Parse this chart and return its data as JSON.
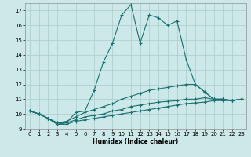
{
  "xlabel": "Humidex (Indice chaleur)",
  "bg_color": "#cce8e8",
  "grid_color": "#aacccc",
  "line_color": "#1a7070",
  "xlim": [
    -0.5,
    23.5
  ],
  "ylim": [
    9,
    17.5
  ],
  "xticks": [
    0,
    1,
    2,
    3,
    4,
    5,
    6,
    7,
    8,
    9,
    10,
    11,
    12,
    13,
    14,
    15,
    16,
    17,
    18,
    19,
    20,
    21,
    22,
    23
  ],
  "yticks": [
    9,
    10,
    11,
    12,
    13,
    14,
    15,
    16,
    17
  ],
  "line1_x": [
    0,
    1,
    2,
    3,
    4,
    5,
    6,
    7,
    8,
    9,
    10,
    11,
    12,
    13,
    14,
    15,
    16,
    17,
    18,
    19,
    20,
    21,
    22,
    23
  ],
  "line1_y": [
    10.2,
    10.0,
    9.7,
    9.3,
    9.4,
    10.1,
    10.2,
    11.6,
    13.5,
    14.8,
    16.7,
    17.4,
    14.8,
    16.7,
    16.5,
    16.0,
    16.3,
    13.7,
    12.0,
    11.5,
    11.0,
    11.0,
    10.9,
    11.0
  ],
  "line2_x": [
    0,
    1,
    2,
    3,
    4,
    5,
    6,
    7,
    8,
    9,
    10,
    11,
    12,
    13,
    14,
    15,
    16,
    17,
    18,
    19,
    20,
    21,
    22,
    23
  ],
  "line2_y": [
    10.2,
    10.0,
    9.7,
    9.4,
    9.5,
    9.8,
    10.1,
    10.3,
    10.5,
    10.7,
    11.0,
    11.2,
    11.4,
    11.6,
    11.7,
    11.8,
    11.9,
    12.0,
    12.0,
    11.5,
    11.0,
    11.0,
    10.9,
    11.0
  ],
  "line3_x": [
    0,
    1,
    2,
    3,
    4,
    5,
    6,
    7,
    8,
    9,
    10,
    11,
    12,
    13,
    14,
    15,
    16,
    17,
    18,
    19,
    20,
    21,
    22,
    23
  ],
  "line3_y": [
    10.2,
    10.0,
    9.7,
    9.4,
    9.4,
    9.6,
    9.8,
    9.9,
    10.0,
    10.2,
    10.3,
    10.5,
    10.6,
    10.7,
    10.8,
    10.85,
    10.9,
    11.0,
    11.0,
    11.1,
    11.0,
    11.0,
    10.9,
    11.0
  ],
  "line4_x": [
    0,
    1,
    2,
    3,
    4,
    5,
    6,
    7,
    8,
    9,
    10,
    11,
    12,
    13,
    14,
    15,
    16,
    17,
    18,
    19,
    20,
    21,
    22,
    23
  ],
  "line4_y": [
    10.2,
    10.0,
    9.7,
    9.3,
    9.3,
    9.5,
    9.6,
    9.7,
    9.8,
    9.9,
    10.0,
    10.1,
    10.2,
    10.3,
    10.4,
    10.5,
    10.6,
    10.7,
    10.75,
    10.8,
    10.9,
    10.9,
    10.9,
    11.0
  ]
}
